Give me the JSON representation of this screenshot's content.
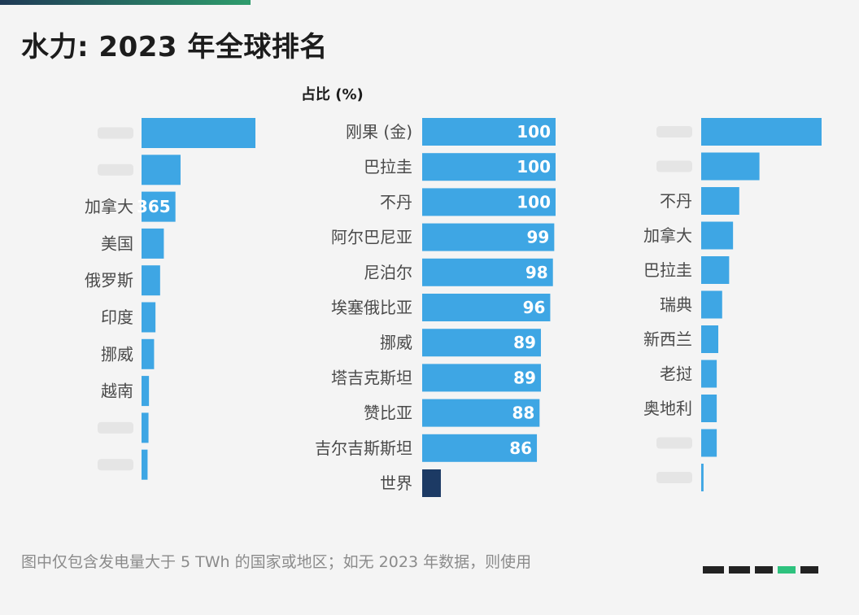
{
  "title": "水力: 2023 年全球排名",
  "footnote": "图中仅包含发电量大于 5 TWh 的国家或地区；如无 2023 年数据，则使用",
  "colors": {
    "bar": "#3ea6e4",
    "world": "#1c3a64",
    "label": "#4a4a4a",
    "value": "#ffffff"
  },
  "chart_data": [
    {
      "type": "bar",
      "orientation": "horizontal",
      "categories": [
        "",
        "",
        "加拿大",
        "美国",
        "俄罗斯",
        "印度",
        "挪威",
        "越南",
        "",
        ""
      ],
      "values": [
        1226,
        420,
        365,
        240,
        200,
        150,
        135,
        80,
        75,
        65
      ],
      "data_labels": [
        "",
        "",
        "365",
        "",
        "",
        "",
        "",
        "",
        "",
        ""
      ]
    },
    {
      "type": "bar",
      "orientation": "horizontal",
      "title": "占比 (%)",
      "categories": [
        "刚果 (金)",
        "巴拉圭",
        "不丹",
        "阿尔巴尼亚",
        "尼泊尔",
        "埃塞俄比亚",
        "挪威",
        "塔吉克斯坦",
        "赞比亚",
        "吉尔吉斯斯坦",
        "世界"
      ],
      "values": [
        100,
        100,
        100,
        99,
        98,
        96,
        89,
        89,
        88,
        86,
        14
      ],
      "data_labels": [
        "100",
        "100",
        "100",
        "99",
        "98",
        "96",
        "89",
        "89",
        "88",
        "86",
        ""
      ],
      "highlight": "世界"
    },
    {
      "type": "bar",
      "orientation": "horizontal",
      "categories": [
        "",
        "",
        "不丹",
        "加拿大",
        "巴拉圭",
        "瑞典",
        "新西兰",
        "老挝",
        "奥地利",
        "",
        ""
      ],
      "values": [
        15.5,
        7.5,
        4.9,
        4.1,
        3.6,
        2.7,
        2.2,
        2.0,
        2.0,
        2.0,
        0.3
      ],
      "data_labels": [
        "",
        "",
        "",
        "",
        "",
        "",
        "",
        "",
        "",
        "",
        ""
      ]
    }
  ]
}
